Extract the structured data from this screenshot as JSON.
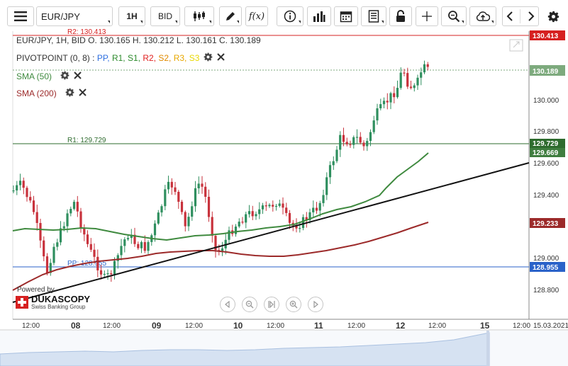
{
  "toolbar": {
    "instrument": "EUR/JPY",
    "period": "1H",
    "side": "BID",
    "function_label": "f(x)"
  },
  "legend": {
    "ohlc": "EUR/JPY, 1H, BID   O. 130.165 H. 130.212 L. 130.161 C. 130.189",
    "pivot_name": "PIVOTPOINT (0, 8)",
    "pivot_sep": " : ",
    "pivot_items": [
      {
        "label": "PP",
        "color": "#2f6fe0"
      },
      {
        "label": "R1",
        "color": "#2e8b2e"
      },
      {
        "label": "S1",
        "color": "#2e8b2e"
      },
      {
        "label": "R2",
        "color": "#e02020"
      },
      {
        "label": "S2",
        "color": "#e08a00"
      },
      {
        "label": "R3",
        "color": "#e8a800"
      },
      {
        "label": "S3",
        "color": "#e8d800"
      }
    ],
    "sma50": "SMA (50)",
    "sma200": "SMA (200)"
  },
  "levels": {
    "r2_label": "R2: 130.413",
    "r1_label": "R1: 129.729",
    "pp_label": "PP: 128.955"
  },
  "price_axis": {
    "ticks": [
      "130.000",
      "129.800",
      "129.600",
      "129.400",
      "129.000",
      "128.800"
    ],
    "tags": [
      {
        "text": "130.413",
        "color": "#d62020"
      },
      {
        "text": "130.189",
        "color": "#7daa7d"
      },
      {
        "text": "129.729",
        "color": "#2e6b2e"
      },
      {
        "text": "129.669",
        "color": "#3f7d3f"
      },
      {
        "text": "129.233",
        "color": "#9c2a2a"
      },
      {
        "text": "128.955",
        "color": "#2a62c9"
      }
    ]
  },
  "time_axis": {
    "labels": [
      {
        "text": "12:00",
        "bold": false
      },
      {
        "text": "08",
        "bold": true
      },
      {
        "text": "12:00",
        "bold": false
      },
      {
        "text": "09",
        "bold": true
      },
      {
        "text": "12:00",
        "bold": false
      },
      {
        "text": "10",
        "bold": true
      },
      {
        "text": "12:00",
        "bold": false
      },
      {
        "text": "11",
        "bold": true
      },
      {
        "text": "12:00",
        "bold": false
      },
      {
        "text": "12",
        "bold": true
      },
      {
        "text": "12:00",
        "bold": false
      },
      {
        "text": "15",
        "bold": true
      },
      {
        "text": "12:00",
        "bold": false
      },
      {
        "text": "15.03.2021",
        "bold": false
      }
    ]
  },
  "branding": {
    "powered_by": "Powered by",
    "brand": "DUKASCOPY",
    "subtitle": "Swiss Banking Group"
  },
  "colors": {
    "up": "#2f8f5f",
    "down": "#c8323c",
    "sma50": "#3f8a3f",
    "sma200": "#9c2a2a",
    "trendline": "#111111"
  },
  "chart_data": {
    "type": "candlestick",
    "instrument": "EUR/JPY",
    "timeframe": "1H",
    "last": {
      "open": 130.165,
      "high": 130.212,
      "low": 130.161,
      "close": 130.189
    },
    "pivot_levels": {
      "R2": 130.413,
      "R1": 129.729,
      "PP": 128.955
    },
    "sma50_last": 129.669,
    "sma200_last": 129.233,
    "ylim": [
      128.73,
      130.45
    ]
  }
}
